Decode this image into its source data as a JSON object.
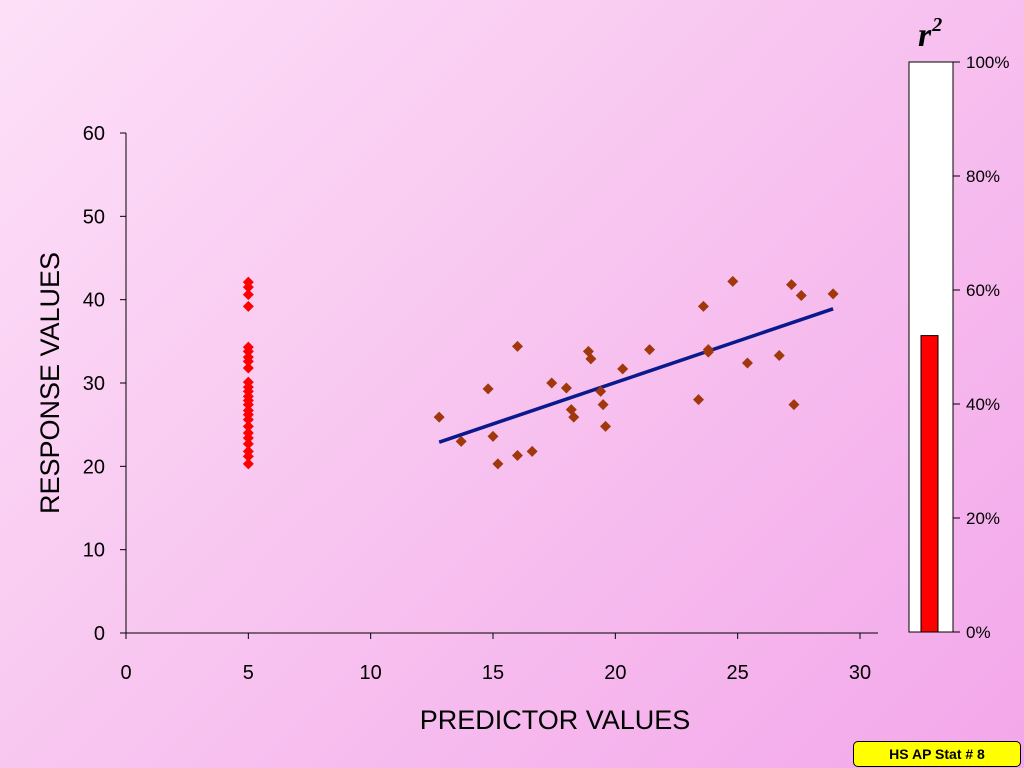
{
  "footer": {
    "label": "HS AP Stat # 8"
  },
  "gauge": {
    "symbol": "r",
    "exponent": "2",
    "value": 52,
    "ticks": [
      0,
      20,
      40,
      60,
      80,
      100
    ],
    "tick_labels": [
      "0%",
      "20%",
      "40%",
      "60%",
      "80%",
      "100%"
    ],
    "fill_color": "#ff0000",
    "frame_color": "#ffffff"
  },
  "chart_data": {
    "type": "scatter",
    "xlabel": "PREDICTOR VALUES",
    "ylabel": "RESPONSE VALUES",
    "xlim": [
      0,
      30
    ],
    "ylim": [
      0,
      60
    ],
    "xticks": [
      0,
      5,
      10,
      15,
      20,
      25,
      30
    ],
    "yticks": [
      0,
      10,
      20,
      30,
      40,
      50,
      60
    ],
    "grid": false,
    "series": [
      {
        "color": "#ff0000",
        "x": [
          5,
          5,
          5,
          5,
          5,
          5,
          5,
          5,
          5,
          5,
          5,
          5,
          5,
          5,
          5,
          5,
          5,
          5,
          5,
          5,
          5,
          5,
          5,
          5,
          5
        ],
        "y": [
          42.1,
          41.5,
          40.6,
          39.2,
          34.3,
          33.8,
          33.1,
          32.6,
          31.8,
          30.1,
          29.5,
          29.0,
          28.4,
          27.9,
          27.4,
          26.7,
          26.2,
          25.6,
          24.8,
          24.0,
          23.4,
          22.7,
          21.8,
          21.2,
          20.3
        ]
      },
      {
        "color": "#a0380c",
        "x": [
          12.8,
          13.7,
          14.8,
          15.0,
          15.2,
          16.0,
          16.0,
          16.6,
          17.4,
          18.0,
          18.2,
          18.3,
          18.9,
          19.0,
          19.4,
          19.5,
          19.6,
          20.3,
          21.4,
          23.4,
          23.6,
          23.8,
          23.8,
          24.8,
          25.4,
          26.7,
          27.2,
          27.3,
          27.6,
          28.9
        ],
        "y": [
          25.9,
          23.0,
          29.3,
          23.6,
          20.3,
          34.4,
          21.3,
          21.8,
          30.0,
          29.4,
          26.8,
          25.9,
          33.8,
          32.9,
          29.0,
          27.4,
          24.8,
          31.7,
          34.0,
          28.0,
          39.2,
          34.0,
          33.7,
          42.2,
          32.4,
          33.3,
          41.8,
          27.4,
          40.5,
          40.7
        ]
      }
    ],
    "trendline": {
      "color": "#0a1a8c",
      "x": [
        12.8,
        28.9
      ],
      "y": [
        22.9,
        38.9
      ]
    }
  }
}
